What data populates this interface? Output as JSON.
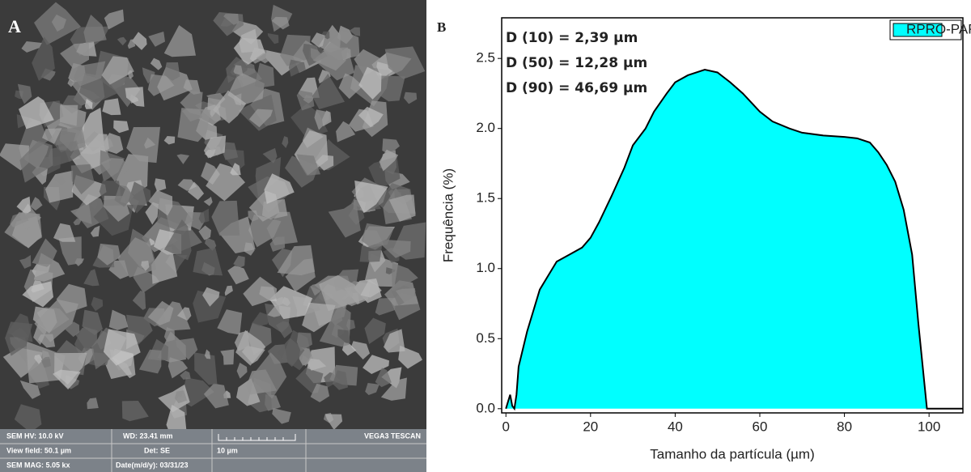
{
  "panel_a": {
    "label": "A",
    "info": {
      "hv": "SEM HV: 10.0 kV",
      "wd": "WD: 23.41 mm",
      "brand": "VEGA3 TESCAN",
      "view_field": "View field: 50.1 µm",
      "det": "Det: SE",
      "scale": "10 µm",
      "mag": "SEM MAG: 5.05 kx",
      "date": "Date(m/d/y): 03/31/23"
    }
  },
  "chart_data": {
    "type": "area",
    "panel_label": "B",
    "xlabel": "Tamanho da partícula (µm)",
    "ylabel": "Frequência (%)",
    "annotations": [
      "D (10) = 2,39 µm",
      "D (50) = 12,28 µm",
      "D (90) = 46,69 µm"
    ],
    "x": [
      0,
      1,
      1.5,
      2,
      2.5,
      3,
      5,
      8,
      10,
      12,
      15,
      18,
      20,
      22,
      25,
      28,
      30,
      33,
      35,
      38,
      40,
      43,
      47,
      50,
      53,
      56,
      60,
      63,
      67,
      70,
      75,
      80,
      83,
      86,
      88,
      90,
      92,
      94,
      96,
      97.5,
      98.5,
      99.5,
      100,
      108
    ],
    "series": [
      {
        "name": "RPRO-PAR",
        "color": "#00ffff",
        "edge": "#000000",
        "values": [
          0,
          0.1,
          0.02,
          0,
          0.1,
          0.3,
          0.55,
          0.85,
          0.95,
          1.05,
          1.1,
          1.15,
          1.22,
          1.33,
          1.52,
          1.72,
          1.88,
          2.0,
          2.12,
          2.25,
          2.33,
          2.38,
          2.42,
          2.4,
          2.33,
          2.25,
          2.12,
          2.05,
          2.0,
          1.97,
          1.95,
          1.94,
          1.93,
          1.9,
          1.83,
          1.74,
          1.62,
          1.42,
          1.1,
          0.6,
          0.3,
          0,
          0,
          0
        ]
      }
    ],
    "xlim": [
      -1,
      108
    ],
    "ylim": [
      -0.03,
      2.79
    ],
    "xticks": [
      0,
      20,
      40,
      60,
      80,
      100
    ],
    "yticks": [
      {
        "value": 0,
        "label": "0.0"
      },
      0.5,
      {
        "value": 1,
        "label": "1.0"
      },
      1.5,
      {
        "value": 2,
        "label": "2.0"
      },
      2.5
    ],
    "legend": "upper right"
  }
}
